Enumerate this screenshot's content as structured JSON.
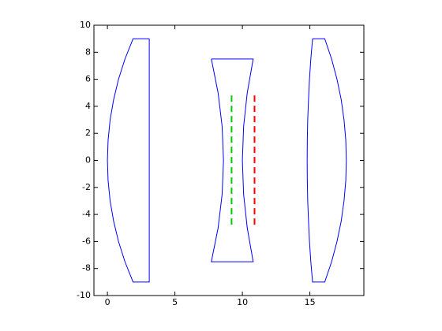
{
  "chart_data": {
    "type": "line",
    "xlim": [
      -1,
      19
    ],
    "ylim": [
      -10,
      10
    ],
    "xticks": [
      0,
      5,
      10,
      15
    ],
    "yticks": [
      -10,
      -8,
      -6,
      -4,
      -2,
      0,
      2,
      4,
      6,
      8,
      10
    ],
    "grid": false,
    "series": [
      {
        "color": "#0000ff",
        "linestyle": "solid",
        "x": [
          3.1,
          1.9,
          1.3,
          0.82,
          0.46,
          0.2,
          0.05,
          0,
          0.05,
          0.2,
          0.46,
          0.82,
          1.3,
          1.9,
          3.1,
          3.1
        ],
        "y": [
          9,
          9,
          7.5,
          6,
          4.5,
          3,
          1.5,
          0,
          -1.5,
          -3,
          -4.5,
          -6,
          -7.5,
          -9,
          -9,
          9
        ]
      },
      {
        "color": "#0000ff",
        "linestyle": "solid",
        "x": [
          7.7,
          10.8,
          10.36,
          10.09,
          10,
          10.09,
          10.36,
          10.8,
          7.7,
          8.2,
          8.5,
          8.6,
          8.5,
          8.2,
          7.7
        ],
        "y": [
          7.5,
          7.5,
          5,
          2.5,
          0,
          -2.5,
          -5,
          -7.5,
          -7.5,
          -5,
          -2.5,
          0,
          2.5,
          5,
          7.5
        ]
      },
      {
        "color": "#0000ff",
        "linestyle": "solid",
        "x": [
          15.2,
          16.1,
          16.61,
          17.01,
          17.32,
          17.53,
          17.66,
          17.7,
          17.66,
          17.53,
          17.32,
          17.01,
          16.61,
          16.1,
          15.2,
          15.07,
          14.97,
          14.9,
          14.84,
          14.81,
          14.8,
          14.81,
          14.84,
          14.9,
          14.97,
          15.07,
          15.2
        ],
        "y": [
          9,
          9,
          7.5,
          6,
          4.5,
          3,
          1.5,
          0,
          -1.5,
          -3,
          -4.5,
          -6,
          -7.5,
          -9,
          -9,
          -7.5,
          -6,
          -4.5,
          -3,
          -1.5,
          0,
          1.5,
          3,
          4.5,
          6,
          7.5,
          9
        ]
      },
      {
        "color": "#00cc00",
        "linestyle": "dashed",
        "x": [
          9.2,
          9.2
        ],
        "y": [
          4.8,
          -4.8
        ]
      },
      {
        "color": "#ff0000",
        "linestyle": "dashed",
        "x": [
          10.9,
          10.9
        ],
        "y": [
          4.8,
          -4.8
        ]
      }
    ]
  }
}
